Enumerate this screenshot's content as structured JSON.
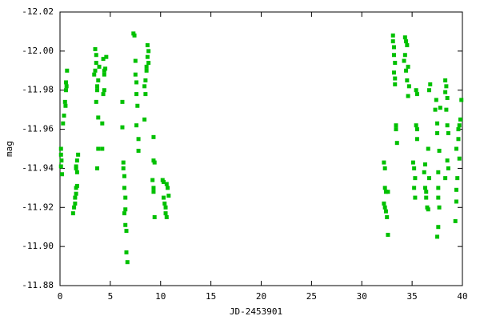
{
  "chart_data": {
    "type": "scatter",
    "xlabel": "JD-2453901",
    "ylabel": "mag",
    "color": "#00c000",
    "xlim": [
      0,
      40
    ],
    "xticks": [
      0,
      5,
      10,
      15,
      20,
      25,
      30,
      35,
      40
    ],
    "ylim": [
      -11.88,
      -12.02
    ],
    "yticks": [
      -11.88,
      {
        "value": -11.9,
        "label": "-11.90"
      },
      -11.92,
      -11.94,
      -11.96,
      -11.98,
      {
        "value": -12,
        "label": "-12.00"
      },
      -12.02
    ],
    "x": [
      0.1,
      0.1,
      0.15,
      0.1,
      0.2,
      0.3,
      0.4,
      0.55,
      0.5,
      0.6,
      0.65,
      0.6,
      0.7,
      1.3,
      1.4,
      1.5,
      1.5,
      1.6,
      1.6,
      1.7,
      1.7,
      1.6,
      1.6,
      1.8,
      1.7,
      3.4,
      3.5,
      3.5,
      3.6,
      3.6,
      3.7,
      3.7,
      3.6,
      3.8,
      3.8,
      3.7,
      3.9,
      3.8,
      4.3,
      4.4,
      4.4,
      4.4,
      4.3,
      4.2,
      4.2,
      4.6,
      4.5,
      6.2,
      6.2,
      6.3,
      6.3,
      6.4,
      6.4,
      6.5,
      6.5,
      6.4,
      6.5,
      6.6,
      6.6,
      6.7,
      7.3,
      7.4,
      7.5,
      7.5,
      7.6,
      7.6,
      7.7,
      7.6,
      7.8,
      7.8,
      8.4,
      8.4,
      8.5,
      8.6,
      8.6,
      8.7,
      8.8,
      8.7,
      8.8,
      8.5,
      9.3,
      9.3,
      9.4,
      9.2,
      9.3,
      9.3,
      9.4,
      10.2,
      10.3,
      10.3,
      10.4,
      10.5,
      10.6,
      10.6,
      10.7,
      10.8,
      10.5,
      32.2,
      32.3,
      32.3,
      32.4,
      32.2,
      32.3,
      32.4,
      32.5,
      32.6,
      32.6,
      33.1,
      33.1,
      33.2,
      33.2,
      33.3,
      33.2,
      33.3,
      33.3,
      33.4,
      33.4,
      33.5,
      34.3,
      34.4,
      34.5,
      34.3,
      34.2,
      34.6,
      34.4,
      34.5,
      34.6,
      34.7,
      35.1,
      35.2,
      35.3,
      35.2,
      35.3,
      35.4,
      35.5,
      35.4,
      35.5,
      35.5,
      36.2,
      36.3,
      36.4,
      36.4,
      36.5,
      36.6,
      36.7,
      36.3,
      36.8,
      36.7,
      36.6,
      37.3,
      37.4,
      37.5,
      37.5,
      37.6,
      37.6,
      37.6,
      37.7,
      37.6,
      37.5,
      37.7,
      37.8,
      38.3,
      38.4,
      38.3,
      38.5,
      38.4,
      38.5,
      38.6,
      38.5,
      38.6,
      38.3,
      39.3,
      39.4,
      39.4,
      39.5,
      39.4,
      39.6,
      39.6,
      39.7,
      39.8,
      39.9,
      39.7
    ],
    "values": [
      -11.95,
      -11.947,
      -11.944,
      -11.941,
      -11.937,
      -11.963,
      -11.967,
      -11.972,
      -11.974,
      -11.98,
      -11.982,
      -11.984,
      -11.99,
      -11.917,
      -11.92,
      -11.922,
      -11.925,
      -11.927,
      -11.93,
      -11.931,
      -11.938,
      -11.94,
      -11.941,
      -11.947,
      -11.944,
      -11.988,
      -11.99,
      -12.001,
      -11.998,
      -11.994,
      -11.98,
      -11.982,
      -11.974,
      -11.966,
      -11.95,
      -11.94,
      -11.992,
      -11.985,
      -11.996,
      -11.99,
      -11.988,
      -11.98,
      -11.978,
      -11.963,
      -11.95,
      -11.997,
      -11.991,
      -11.974,
      -11.961,
      -11.943,
      -11.94,
      -11.936,
      -11.93,
      -11.925,
      -11.919,
      -11.917,
      -11.911,
      -11.908,
      -11.897,
      -11.892,
      -12.009,
      -12.008,
      -11.995,
      -11.988,
      -11.984,
      -11.978,
      -11.972,
      -11.962,
      -11.955,
      -11.949,
      -11.965,
      -11.982,
      -11.985,
      -11.99,
      -11.992,
      -11.997,
      -12.0,
      -12.003,
      -11.994,
      -11.978,
      -11.956,
      -11.944,
      -11.943,
      -11.934,
      -11.93,
      -11.928,
      -11.915,
      -11.934,
      -11.933,
      -11.925,
      -11.922,
      -11.917,
      -11.915,
      -11.932,
      -11.93,
      -11.926,
      -11.92,
      -11.943,
      -11.94,
      -11.93,
      -11.928,
      -11.922,
      -11.92,
      -11.918,
      -11.915,
      -11.928,
      -11.906,
      -12.008,
      -12.005,
      -12.002,
      -11.998,
      -11.994,
      -11.989,
      -11.986,
      -11.983,
      -11.962,
      -11.96,
      -11.953,
      -12.007,
      -12.005,
      -12.003,
      -11.998,
      -11.995,
      -11.992,
      -11.99,
      -11.985,
      -11.977,
      -11.982,
      -11.943,
      -11.94,
      -11.935,
      -11.93,
      -11.925,
      -11.962,
      -11.96,
      -11.98,
      -11.978,
      -11.955,
      -11.938,
      -11.93,
      -11.928,
      -11.925,
      -11.92,
      -11.919,
      -11.935,
      -11.942,
      -11.983,
      -11.98,
      -11.95,
      -11.97,
      -11.975,
      -11.963,
      -11.958,
      -11.938,
      -11.93,
      -11.925,
      -11.92,
      -11.91,
      -11.905,
      -11.949,
      -11.971,
      -11.985,
      -11.982,
      -11.979,
      -11.976,
      -11.97,
      -11.962,
      -11.958,
      -11.944,
      -11.94,
      -11.935,
      -11.913,
      -11.923,
      -11.929,
      -11.935,
      -11.95,
      -11.955,
      -11.96,
      -11.962,
      -11.965,
      -11.975,
      -11.945
    ]
  }
}
